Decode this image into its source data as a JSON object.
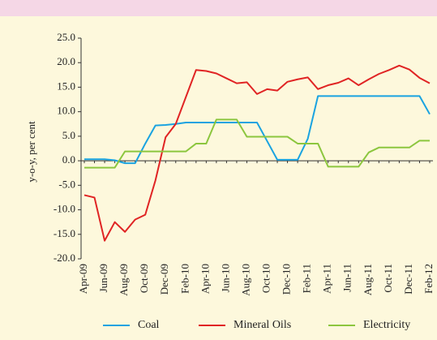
{
  "chart_data": {
    "type": "line",
    "ylabel": "y-o-y, per cent",
    "categories": [
      "Apr-09",
      null,
      "Jun-09",
      null,
      "Aug-09",
      null,
      "Oct-09",
      null,
      "Dec-09",
      null,
      "Feb-10",
      null,
      "Apr-10",
      null,
      "Jun-10",
      null,
      "Aug-10",
      null,
      "Oct-10",
      null,
      "Dec-10",
      null,
      "Feb-11",
      null,
      "Apr-11",
      null,
      "Jun-11",
      null,
      "Aug-11",
      null,
      "Oct-11",
      null,
      "Dec-11",
      null,
      "Feb-12"
    ],
    "series": [
      {
        "name": "Coal",
        "color": "#1aa3e0",
        "values": [
          0.3,
          0.3,
          0.3,
          0.1,
          -0.5,
          -0.5,
          3.5,
          7.2,
          7.3,
          7.5,
          7.8,
          7.8,
          7.8,
          7.8,
          7.8,
          7.8,
          7.8,
          7.8,
          4.0,
          0.2,
          0.2,
          0.2,
          4.5,
          13.2,
          13.2,
          13.2,
          13.2,
          13.2,
          13.2,
          13.2,
          13.2,
          13.2,
          13.2,
          13.2,
          9.5
        ]
      },
      {
        "name": "Mineral Oils",
        "color": "#e02424",
        "values": [
          -7.0,
          -7.5,
          -16.3,
          -12.5,
          -14.5,
          -12.0,
          -11.0,
          -4.0,
          4.8,
          7.5,
          13.0,
          18.5,
          18.3,
          17.8,
          16.8,
          15.8,
          16.0,
          13.6,
          14.6,
          14.3,
          16.1,
          16.6,
          17.0,
          14.6,
          15.4,
          15.9,
          16.8,
          15.4,
          16.6,
          17.7,
          18.5,
          19.4,
          18.6,
          16.9,
          15.8
        ]
      },
      {
        "name": "Electricity",
        "color": "#8cc63e",
        "values": [
          -1.4,
          -1.4,
          -1.4,
          -1.4,
          1.9,
          1.9,
          1.9,
          1.9,
          1.9,
          1.9,
          1.9,
          3.5,
          3.5,
          8.4,
          8.4,
          8.4,
          4.9,
          4.9,
          4.9,
          4.9,
          4.9,
          3.5,
          3.5,
          3.5,
          -1.2,
          -1.2,
          -1.2,
          -1.2,
          1.7,
          2.7,
          2.7,
          2.7,
          2.7,
          4.1,
          4.1
        ]
      }
    ],
    "ylim": [
      -20,
      25
    ],
    "yticks": [
      {
        "value": -20,
        "label": "-20.0"
      },
      {
        "value": -15,
        "label": "-15.0"
      },
      {
        "value": -10,
        "label": "-10.0"
      },
      {
        "value": -5,
        "label": "-5.0"
      },
      {
        "value": 0,
        "label": "0.0"
      },
      {
        "value": 5,
        "label": "5.0"
      },
      {
        "value": 10,
        "label": "10.0"
      },
      {
        "value": 15,
        "label": "15.0"
      },
      {
        "value": 20,
        "label": "20.0"
      },
      {
        "value": 25,
        "label": "25.0"
      }
    ],
    "grid": false,
    "legend": "bottom"
  }
}
